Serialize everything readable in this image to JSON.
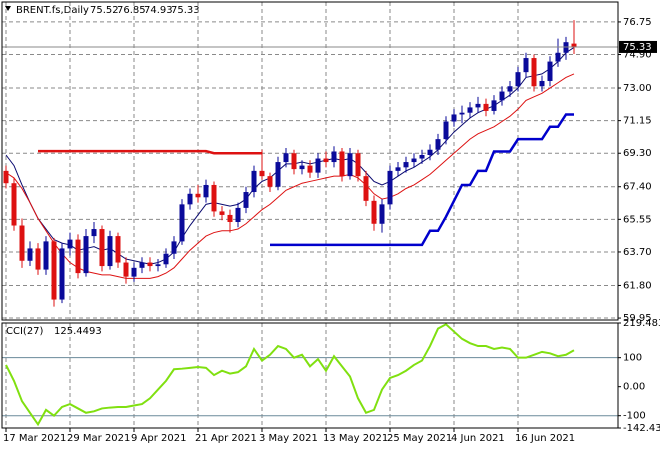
{
  "chart_data": {
    "type": "candlestick",
    "title": "BRENT.fs,Daily",
    "categories": [
      "17 Mar 2021",
      null,
      null,
      null,
      null,
      null,
      null,
      null,
      "29 Mar 2021",
      null,
      null,
      null,
      null,
      null,
      null,
      null,
      "9 Apr 2021",
      null,
      null,
      null,
      null,
      null,
      null,
      null,
      "21 Apr 2021",
      null,
      null,
      null,
      null,
      null,
      null,
      null,
      "3 May 2021",
      null,
      null,
      null,
      null,
      null,
      null,
      null,
      "13 May 2021",
      null,
      null,
      null,
      null,
      null,
      null,
      null,
      "25 May 2021",
      null,
      null,
      null,
      null,
      null,
      null,
      null,
      "4 Jun 2021",
      null,
      null,
      null,
      null,
      null,
      null,
      null,
      "16 Jun 2021",
      null,
      null,
      null,
      null,
      null,
      null,
      null
    ],
    "ohlc": [
      [
        68.3,
        68.6,
        67.3,
        67.6
      ],
      [
        67.6,
        67.9,
        64.9,
        65.2
      ],
      [
        65.2,
        65.6,
        62.8,
        63.2
      ],
      [
        63.2,
        64.3,
        62.9,
        63.9
      ],
      [
        63.9,
        64.2,
        62.4,
        62.7
      ],
      [
        62.7,
        64.6,
        62.4,
        64.3
      ],
      [
        64.3,
        64.5,
        60.6,
        61.0
      ],
      [
        61.0,
        64.2,
        60.8,
        63.9
      ],
      [
        63.9,
        64.8,
        63.5,
        64.4
      ],
      [
        64.4,
        64.7,
        62.2,
        62.5
      ],
      [
        62.5,
        65.0,
        62.3,
        64.6
      ],
      [
        64.6,
        65.4,
        64.2,
        65.0
      ],
      [
        65.0,
        65.2,
        62.6,
        62.9
      ],
      [
        62.9,
        64.9,
        62.7,
        64.6
      ],
      [
        64.6,
        64.8,
        62.8,
        63.1
      ],
      [
        63.1,
        63.4,
        61.9,
        62.3
      ],
      [
        62.3,
        63.1,
        62.0,
        62.8
      ],
      [
        62.8,
        63.4,
        62.5,
        63.1
      ],
      [
        63.1,
        63.4,
        62.6,
        62.9
      ],
      [
        62.9,
        63.3,
        62.6,
        63.0
      ],
      [
        63.0,
        63.9,
        62.8,
        63.6
      ],
      [
        63.6,
        64.6,
        63.3,
        64.3
      ],
      [
        64.3,
        66.7,
        64.1,
        66.4
      ],
      [
        66.4,
        67.3,
        66.1,
        67.0
      ],
      [
        67.0,
        67.5,
        66.5,
        66.8
      ],
      [
        66.8,
        67.8,
        66.5,
        67.5
      ],
      [
        67.5,
        67.7,
        65.7,
        66.0
      ],
      [
        66.0,
        66.3,
        65.5,
        65.8
      ],
      [
        65.8,
        66.1,
        64.8,
        65.4
      ],
      [
        65.4,
        66.5,
        65.1,
        66.2
      ],
      [
        66.2,
        67.4,
        65.9,
        67.1
      ],
      [
        67.1,
        68.6,
        66.8,
        68.3
      ],
      [
        68.3,
        69.5,
        67.8,
        68.0
      ],
      [
        68.0,
        68.2,
        67.1,
        67.4
      ],
      [
        67.4,
        69.1,
        67.2,
        68.8
      ],
      [
        68.8,
        69.6,
        68.5,
        69.3
      ],
      [
        69.3,
        69.5,
        68.1,
        68.4
      ],
      [
        68.4,
        68.9,
        68.1,
        68.6
      ],
      [
        68.6,
        68.9,
        67.9,
        68.2
      ],
      [
        68.2,
        69.3,
        67.9,
        69.0
      ],
      [
        69.0,
        69.4,
        68.5,
        68.8
      ],
      [
        68.8,
        69.7,
        68.5,
        69.4
      ],
      [
        69.4,
        69.6,
        67.7,
        68.0
      ],
      [
        68.0,
        69.6,
        67.8,
        69.3
      ],
      [
        69.3,
        69.5,
        67.7,
        68.0
      ],
      [
        68.0,
        68.3,
        66.3,
        66.6
      ],
      [
        66.6,
        66.9,
        64.9,
        65.3
      ],
      [
        65.3,
        66.7,
        64.8,
        66.4
      ],
      [
        66.4,
        68.6,
        66.1,
        68.3
      ],
      [
        68.3,
        68.8,
        68.0,
        68.5
      ],
      [
        68.5,
        69.1,
        68.2,
        68.8
      ],
      [
        68.8,
        69.3,
        68.5,
        69.0
      ],
      [
        69.0,
        69.5,
        68.7,
        69.2
      ],
      [
        69.2,
        69.8,
        68.9,
        69.5
      ],
      [
        69.5,
        70.4,
        69.2,
        70.1
      ],
      [
        70.1,
        71.4,
        69.8,
        71.1
      ],
      [
        71.1,
        71.8,
        70.8,
        71.5
      ],
      [
        71.5,
        72.0,
        71.0,
        71.6
      ],
      [
        71.6,
        72.2,
        71.3,
        71.9
      ],
      [
        71.9,
        72.5,
        71.6,
        72.1
      ],
      [
        72.1,
        72.4,
        71.4,
        71.7
      ],
      [
        71.7,
        72.6,
        71.5,
        72.3
      ],
      [
        72.3,
        73.1,
        72.0,
        72.8
      ],
      [
        72.8,
        73.4,
        72.5,
        73.1
      ],
      [
        73.1,
        74.2,
        72.8,
        73.9
      ],
      [
        73.9,
        75.0,
        73.6,
        74.7
      ],
      [
        74.7,
        74.9,
        72.8,
        73.1
      ],
      [
        73.1,
        73.7,
        72.8,
        73.4
      ],
      [
        73.4,
        74.8,
        73.1,
        74.5
      ],
      [
        74.5,
        75.8,
        74.2,
        75.0
      ],
      [
        75.0,
        75.9,
        74.6,
        75.6
      ],
      [
        75.52,
        76.85,
        74.93,
        75.33
      ]
    ],
    "up_color": "#0a0a9a",
    "down_color": "#dd1111",
    "lines": [
      {
        "color": "#0a0a70",
        "width": 1,
        "values": [
          69.2,
          68.6,
          67.5,
          66.5,
          65.6,
          65.0,
          64.4,
          64.2,
          64.1,
          63.8,
          63.9,
          64.0,
          63.8,
          63.9,
          63.6,
          63.3,
          63.2,
          63.1,
          63.0,
          63.1,
          63.3,
          63.7,
          64.5,
          65.2,
          65.8,
          66.4,
          66.5,
          66.4,
          66.3,
          66.4,
          66.7,
          67.3,
          67.7,
          67.9,
          68.3,
          68.7,
          68.7,
          68.8,
          68.7,
          68.8,
          68.9,
          69.0,
          68.9,
          69.0,
          68.7,
          68.2,
          67.7,
          67.5,
          67.7,
          68.0,
          68.3,
          68.5,
          68.8,
          69.1,
          69.5,
          70.0,
          70.5,
          70.9,
          71.3,
          71.6,
          71.8,
          72.0,
          72.3,
          72.6,
          73.0,
          73.6,
          73.7,
          73.8,
          74.1,
          74.5,
          75.0,
          75.3
        ]
      },
      {
        "color": "#dd1111",
        "width": 1,
        "values": [
          68.2,
          67.9,
          67.3,
          66.5,
          65.6,
          64.9,
          64.2,
          63.6,
          63.1,
          62.8,
          62.6,
          62.5,
          62.4,
          62.4,
          62.3,
          62.2,
          62.2,
          62.2,
          62.2,
          62.3,
          62.5,
          62.8,
          63.3,
          63.8,
          64.2,
          64.6,
          64.8,
          64.9,
          64.9,
          65.0,
          65.3,
          65.7,
          66.1,
          66.4,
          66.8,
          67.2,
          67.4,
          67.6,
          67.7,
          67.8,
          67.9,
          68.0,
          68.0,
          68.1,
          67.9,
          67.5,
          67.0,
          66.7,
          66.8,
          67.0,
          67.3,
          67.5,
          67.8,
          68.1,
          68.5,
          68.9,
          69.3,
          69.7,
          70.1,
          70.4,
          70.6,
          70.8,
          71.1,
          71.4,
          71.8,
          72.3,
          72.5,
          72.7,
          73.0,
          73.3,
          73.6,
          73.8
        ]
      },
      {
        "color": "#dd1111",
        "width": 2.5,
        "values": [
          null,
          null,
          null,
          null,
          69.42,
          69.42,
          69.42,
          69.42,
          69.42,
          69.42,
          69.42,
          69.42,
          69.42,
          69.42,
          69.42,
          69.42,
          69.42,
          69.42,
          69.42,
          69.42,
          69.42,
          69.42,
          69.42,
          69.42,
          69.42,
          69.42,
          69.3,
          69.3,
          69.3,
          69.3,
          69.3,
          69.3,
          69.3,
          null,
          null,
          null,
          null,
          null,
          null,
          null,
          null,
          null,
          null,
          null,
          null,
          null,
          null,
          null,
          null,
          null,
          null,
          null,
          null,
          null,
          null,
          null,
          null,
          null,
          null,
          null,
          null,
          null,
          null,
          null,
          null,
          null,
          null,
          null,
          null,
          null,
          null,
          null
        ]
      },
      {
        "color": "#0000cc",
        "width": 2.5,
        "values": [
          null,
          null,
          null,
          null,
          null,
          null,
          null,
          null,
          null,
          null,
          null,
          null,
          null,
          null,
          null,
          null,
          null,
          null,
          null,
          null,
          null,
          null,
          null,
          null,
          null,
          null,
          null,
          null,
          null,
          null,
          null,
          null,
          null,
          64.1,
          64.1,
          64.1,
          64.1,
          64.1,
          64.1,
          64.1,
          64.1,
          64.1,
          64.1,
          64.1,
          64.1,
          64.1,
          64.1,
          64.1,
          64.1,
          64.1,
          64.1,
          64.1,
          64.1,
          64.9,
          64.9,
          65.7,
          66.6,
          67.5,
          67.5,
          68.3,
          68.3,
          69.4,
          69.4,
          69.4,
          70.1,
          70.1,
          70.1,
          70.1,
          70.8,
          70.8,
          71.5,
          71.5
        ]
      }
    ],
    "ylim": [
      59.84,
      77.88
    ],
    "yticks": [
      76.75,
      {
        "value": 74.9,
        "label": "74.90"
      },
      {
        "value": 73,
        "label": "73.00"
      },
      71.15,
      {
        "value": 69.3,
        "label": "69.30"
      },
      {
        "value": 67.4,
        "label": "67.40"
      },
      65.55,
      {
        "value": 63.7,
        "label": "63.70"
      },
      {
        "value": 61.8,
        "label": "61.80"
      },
      59.95
    ],
    "grid": true,
    "indicator": {
      "name": "CCI(27)",
      "color": "#80e010",
      "values": [
        75,
        20,
        -50,
        -90,
        -130,
        -80,
        -100,
        -70,
        -60,
        -75,
        -90,
        -85,
        -75,
        -72,
        -70,
        -70,
        -65,
        -60,
        -40,
        -10,
        20,
        60,
        62,
        65,
        68,
        65,
        40,
        55,
        45,
        50,
        70,
        130,
        90,
        110,
        140,
        130,
        100,
        110,
        70,
        95,
        55,
        105,
        70,
        35,
        -40,
        -90,
        -80,
        -10,
        30,
        40,
        55,
        75,
        90,
        140,
        200,
        215,
        190,
        165,
        150,
        140,
        140,
        130,
        135,
        130,
        100,
        100,
        110,
        120,
        115,
        105,
        110,
        125.4493
      ],
      "ylim": [
        -142.43,
        219.4838
      ],
      "yticks": [
        219.4838,
        100,
        {
          "value": 0,
          "label": "0.00"
        },
        -100,
        -142.43
      ],
      "levels": [
        100,
        -100
      ]
    }
  }
}
